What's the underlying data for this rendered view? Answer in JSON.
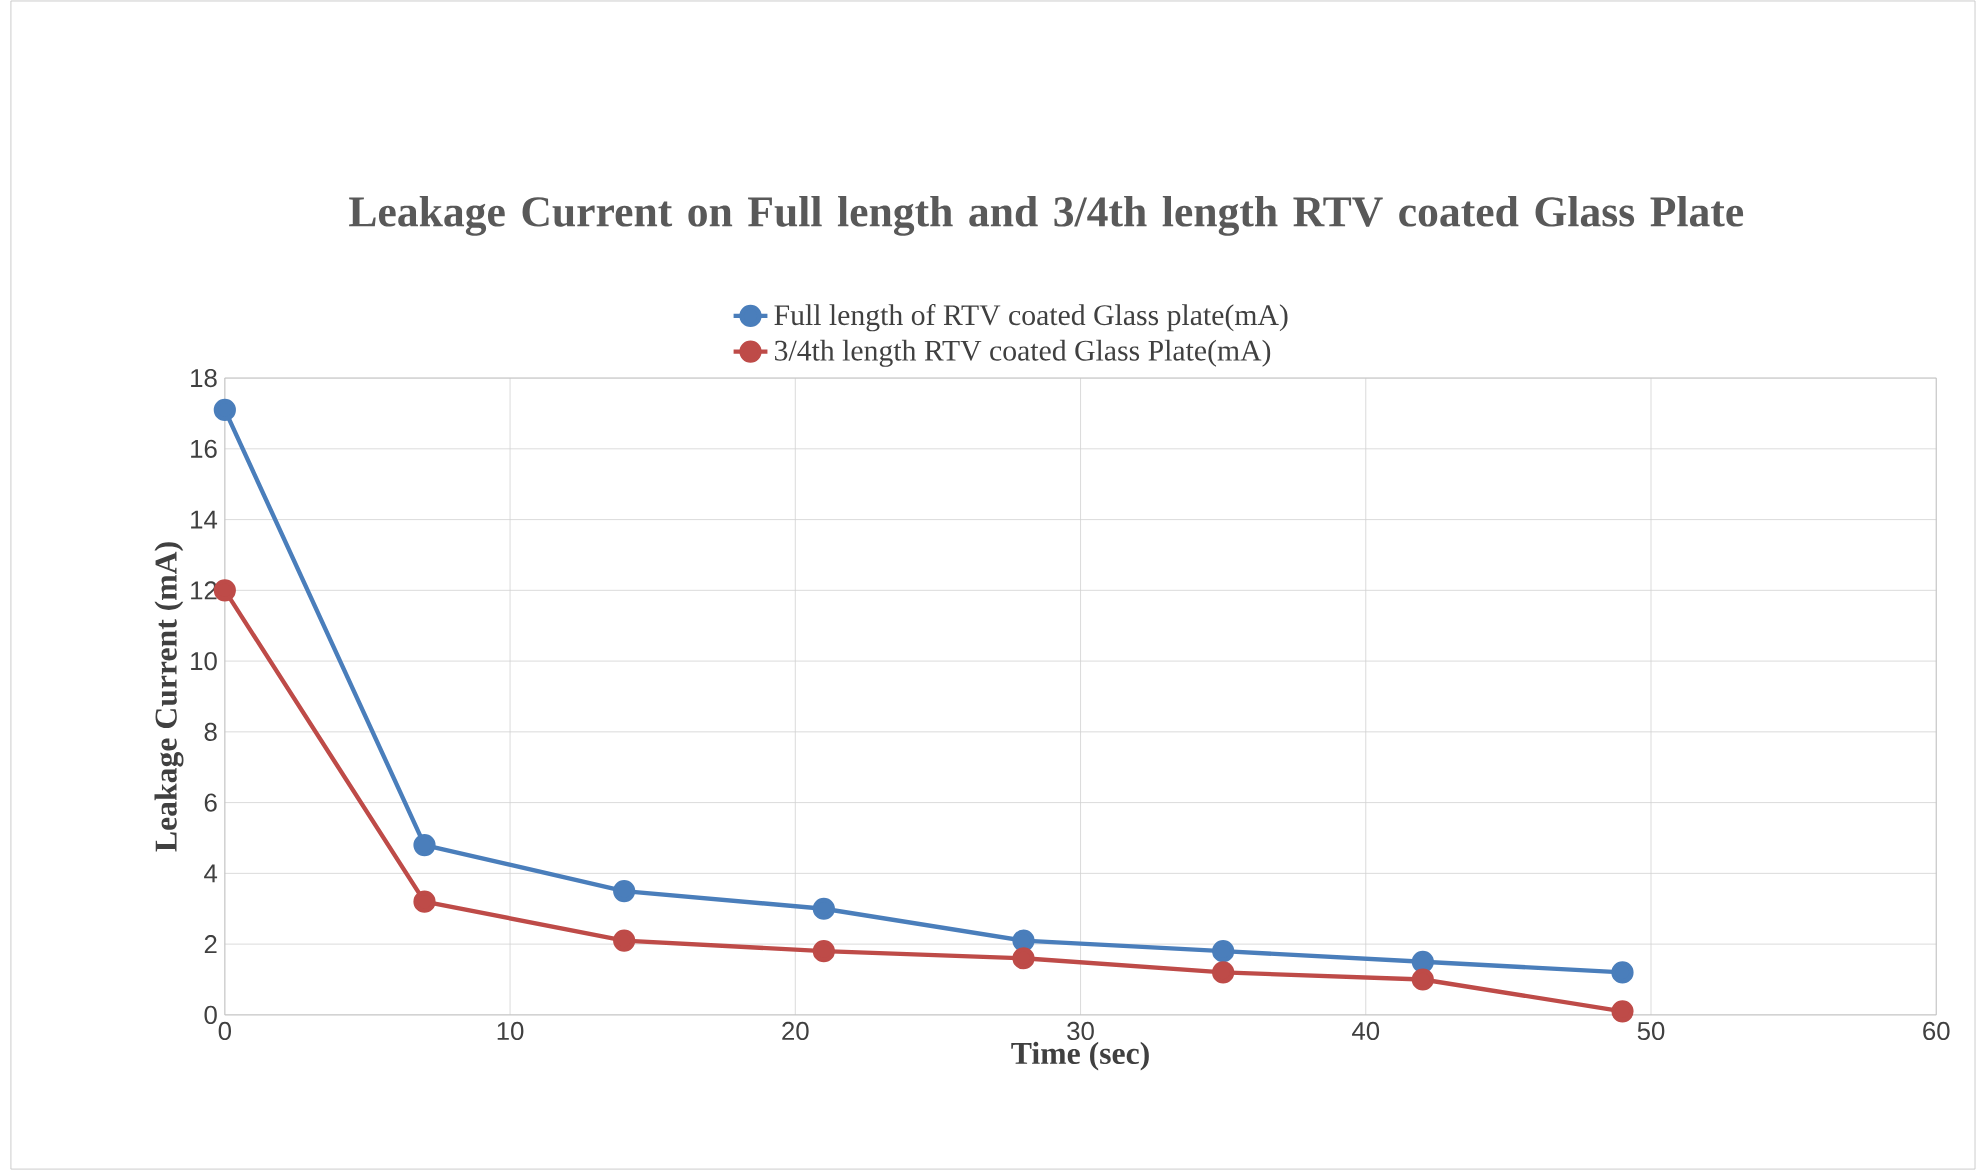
{
  "chart_data": {
    "type": "line",
    "title": "Leakage Current on Full length and 3/4th length RTV coated Glass Plate",
    "xlabel": "Time (sec)",
    "ylabel": "Leakage Current (mA)",
    "x": [
      0,
      7,
      14,
      21,
      28,
      35,
      42,
      49
    ],
    "series": [
      {
        "name": "Full length of RTV coated Glass plate(mA)",
        "color": "#4a7ebb",
        "values": [
          17.1,
          4.8,
          3.5,
          3.0,
          2.1,
          1.8,
          1.5,
          1.2
        ]
      },
      {
        "name": "3/4th length RTV coated Glass Plate(mA)",
        "color": "#be4b48",
        "values": [
          12,
          3.2,
          2.1,
          1.8,
          1.6,
          1.2,
          1.0,
          0.1
        ]
      }
    ],
    "xlim": [
      0,
      60
    ],
    "xticks": [
      0,
      10,
      20,
      30,
      40,
      50,
      60
    ],
    "ylim": [
      0,
      18
    ],
    "yticks": [
      0,
      2,
      4,
      6,
      8,
      10,
      12,
      14,
      16,
      18
    ],
    "grid": true,
    "legend": "top",
    "marker": "circle",
    "line_style": "solid"
  }
}
